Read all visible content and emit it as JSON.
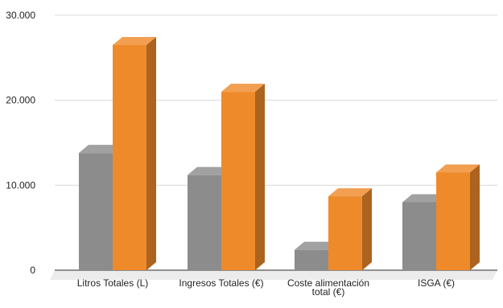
{
  "chart_data": {
    "type": "bar",
    "style": "3d-clustered-column",
    "categories": [
      [
        "Litros Totales (L)"
      ],
      [
        "Ingresos Totales (€)"
      ],
      [
        "Coste alimentación",
        "total (€)"
      ],
      [
        "ISGA (€)"
      ]
    ],
    "series": [
      {
        "values": [
          13800,
          11200,
          2400,
          8000
        ],
        "color": "#8c8c8c"
      },
      {
        "values": [
          26500,
          21000,
          8700,
          11500
        ],
        "color": "#ef8a2b"
      }
    ],
    "ylim": [
      0,
      30000
    ],
    "yticks": [
      0,
      10000,
      20000,
      30000
    ],
    "ytick_labels": [
      "0",
      "10.000",
      "20.000",
      "30.000"
    ],
    "grid": true,
    "legend": "none"
  }
}
